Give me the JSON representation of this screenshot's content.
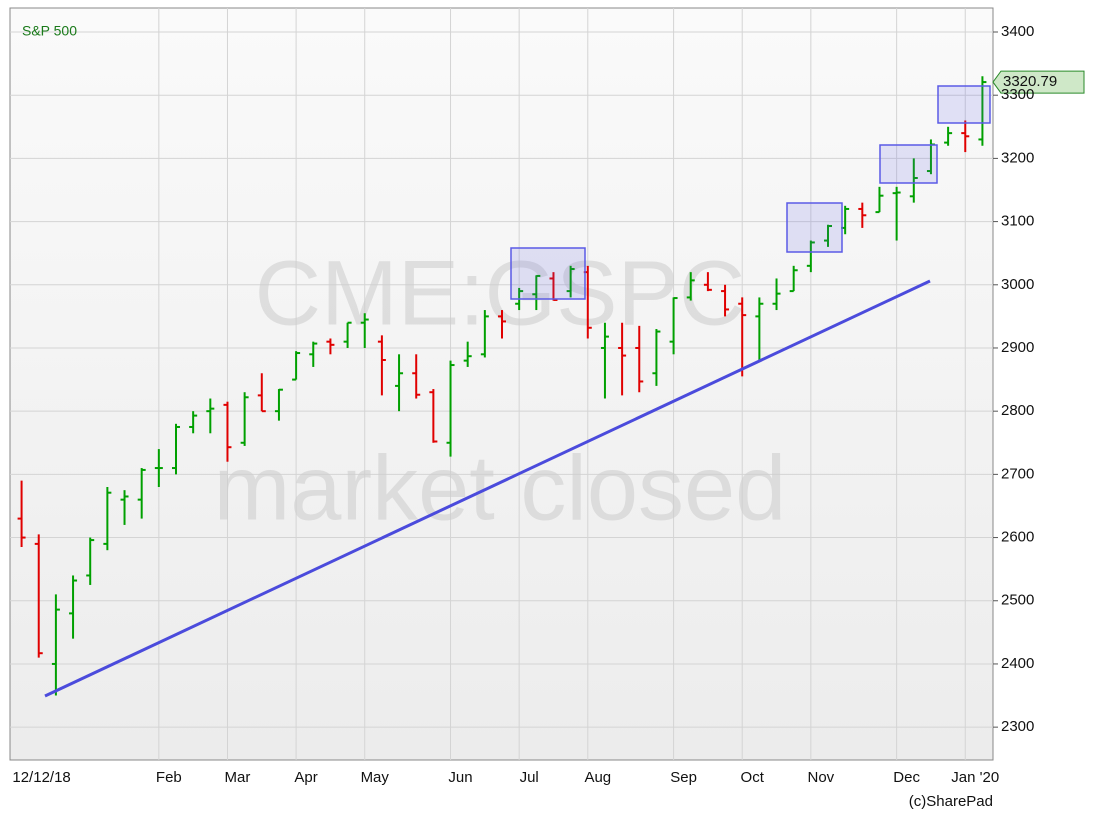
{
  "chart_data": {
    "type": "ohlc",
    "title": "S&P 500",
    "watermark": "CME:GSPC",
    "status": "market closed",
    "credit": "(c)SharePad",
    "last_price": 3320.79,
    "categories": [
      "12/12/18",
      null,
      null,
      null,
      null,
      null,
      null,
      null,
      "Feb",
      null,
      null,
      null,
      "Mar",
      null,
      null,
      null,
      "Apr",
      null,
      null,
      null,
      "May",
      null,
      null,
      null,
      null,
      "Jun",
      null,
      null,
      null,
      "Jul",
      null,
      null,
      null,
      "Aug",
      null,
      null,
      null,
      null,
      "Sep",
      null,
      null,
      null,
      "Oct",
      null,
      null,
      null,
      "Nov",
      null,
      null,
      null,
      null,
      "Dec",
      null,
      null,
      null,
      "Jan '20",
      null
    ],
    "open": [
      2630,
      2590,
      2400,
      2480,
      2540,
      2590,
      2660,
      2660,
      2710,
      2710,
      2775,
      2800,
      2810,
      2750,
      2825,
      2800,
      2850,
      2890,
      2910,
      2910,
      2940,
      2910,
      2840,
      2860,
      2830,
      2750,
      2880,
      2890,
      2950,
      2970,
      2985,
      3010,
      2990,
      3020,
      2900,
      2900,
      2900,
      2860,
      2910,
      2980,
      3000,
      2990,
      2970,
      2950,
      2970,
      2990,
      3030,
      3070,
      3090,
      3120,
      3115,
      3145,
      3140,
      3180,
      3225,
      3240,
      3230
    ],
    "high": [
      2690,
      2605,
      2510,
      2540,
      2600,
      2680,
      2675,
      2710,
      2740,
      2780,
      2800,
      2820,
      2815,
      2830,
      2860,
      2835,
      2895,
      2910,
      2915,
      2940,
      2955,
      2920,
      2890,
      2890,
      2835,
      2880,
      2910,
      2960,
      2960,
      2995,
      3015,
      3020,
      3030,
      3030,
      2940,
      2940,
      2935,
      2930,
      2980,
      3020,
      3020,
      3000,
      2980,
      2980,
      3010,
      3030,
      3070,
      3095,
      3125,
      3130,
      3155,
      3155,
      3200,
      3230,
      3250,
      3260,
      3330
    ],
    "low": [
      2585,
      2410,
      2350,
      2440,
      2525,
      2580,
      2620,
      2630,
      2680,
      2700,
      2765,
      2765,
      2720,
      2745,
      2800,
      2785,
      2850,
      2870,
      2890,
      2900,
      2900,
      2825,
      2800,
      2820,
      2750,
      2728,
      2870,
      2885,
      2915,
      2960,
      2960,
      2975,
      2980,
      2915,
      2820,
      2825,
      2830,
      2840,
      2890,
      2975,
      2990,
      2950,
      2855,
      2880,
      2960,
      2990,
      3020,
      3060,
      3080,
      3090,
      3115,
      3070,
      3130,
      3175,
      3220,
      3210,
      3220
    ],
    "close": [
      2600,
      2417,
      2486,
      2532,
      2596,
      2671,
      2665,
      2707,
      2710,
      2775,
      2793,
      2804,
      2743,
      2822,
      2800,
      2834,
      2892,
      2907,
      2905,
      2940,
      2945,
      2881,
      2860,
      2826,
      2752,
      2873,
      2887,
      2950,
      2942,
      2990,
      3014,
      2976,
      3025,
      2932,
      2918,
      2888,
      2847,
      2926,
      2979,
      3007,
      2992,
      2961,
      2952,
      2970,
      2986,
      3023,
      3067,
      3093,
      3120,
      3110,
      3141,
      3146,
      3169,
      3222,
      3240,
      3235,
      3320.79
    ],
    "up_color": "#00a000",
    "down_color": "#e00000",
    "ylim": [
      2248,
      3438
    ],
    "yticks": [
      2300,
      2400,
      2500,
      2600,
      2700,
      2800,
      2900,
      3000,
      3100,
      3200,
      3300,
      3400
    ],
    "grid": true
  }
}
